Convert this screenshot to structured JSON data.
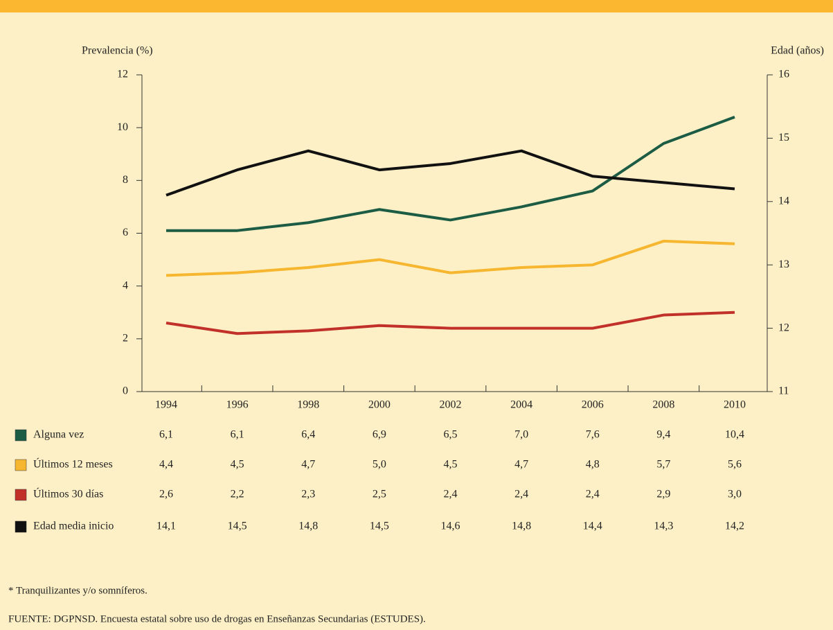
{
  "chart_data": {
    "type": "line",
    "y_label": "Prevalencia (%)",
    "y2_label": "Edad (años)",
    "categories": [
      "1994",
      "1996",
      "1998",
      "2000",
      "2002",
      "2004",
      "2006",
      "2008",
      "2010"
    ],
    "ylim": [
      0,
      12
    ],
    "yticks": [
      0,
      2,
      4,
      6,
      8,
      10,
      12
    ],
    "y2lim": [
      11,
      16
    ],
    "y2ticks": [
      11,
      12,
      13,
      14,
      15,
      16
    ],
    "series": [
      {
        "name": "Alguna vez",
        "color": "#1d5c44",
        "values": [
          6.1,
          6.1,
          6.4,
          6.9,
          6.5,
          7.0,
          7.6,
          9.4,
          10.4
        ],
        "value_labels": [
          "6,1",
          "6,1",
          "6,4",
          "6,9",
          "6,5",
          "7,0",
          "7,6",
          "9,4",
          "10,4"
        ]
      },
      {
        "name": "Últimos 12 meses",
        "color": "#f6b62f",
        "values": [
          4.4,
          4.5,
          4.7,
          5.0,
          4.5,
          4.7,
          4.8,
          5.7,
          5.6
        ],
        "value_labels": [
          "4,4",
          "4,5",
          "4,7",
          "5,0",
          "4,5",
          "4,7",
          "4,8",
          "5,7",
          "5,6"
        ]
      },
      {
        "name": "Últimos 30 días",
        "color": "#c1312a",
        "values": [
          2.6,
          2.2,
          2.3,
          2.5,
          2.4,
          2.4,
          2.4,
          2.9,
          3.0
        ],
        "value_labels": [
          "2,6",
          "2,2",
          "2,3",
          "2,5",
          "2,4",
          "2,4",
          "2,4",
          "2,9",
          "3,0"
        ]
      },
      {
        "name": "Edad media inicio",
        "color": "#111111",
        "axis": "y2",
        "values": [
          14.1,
          14.5,
          14.8,
          14.5,
          14.6,
          14.8,
          14.4,
          14.3,
          14.2
        ],
        "value_labels": [
          "14,1",
          "14,5",
          "14,8",
          "14,5",
          "14,6",
          "14,8",
          "14,4",
          "14,3",
          "14,2"
        ]
      }
    ],
    "footnote": "* Tranquilizantes y/o somníferos.",
    "source": "FUENTE: DGPNSD. Encuesta estatal sobre uso de drogas en Enseñanzas Secundarias (ESTUDES)."
  }
}
